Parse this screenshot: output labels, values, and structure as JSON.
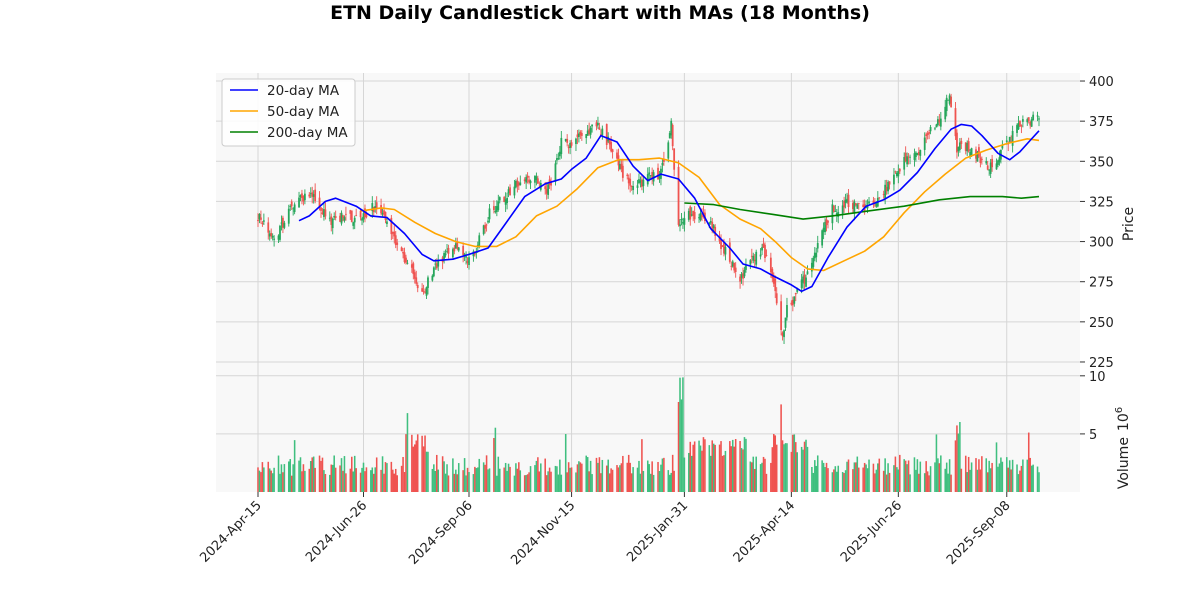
{
  "chart_data": {
    "type": "candlestick",
    "title": "ETN Daily Candlestick Chart with MAs (18 Months)",
    "ylabel_price": "Price",
    "ylabel_volume": "Volume",
    "volume_unit_exponent": "6",
    "price_ylim": [
      220,
      405
    ],
    "price_ticks": [
      225,
      250,
      275,
      300,
      325,
      350,
      375,
      400
    ],
    "volume_ylim": [
      0,
      10.5
    ],
    "volume_ticks": [
      5,
      10
    ],
    "date_range": [
      "2024-04-15",
      "2025-09-30"
    ],
    "x_ticks": [
      {
        "date": "2024-04-15",
        "label": "2024-Apr-15"
      },
      {
        "date": "2024-06-26",
        "label": "2024-Jun-26"
      },
      {
        "date": "2024-09-06",
        "label": "2024-Sep-06"
      },
      {
        "date": "2024-11-15",
        "label": "2024-Nov-15"
      },
      {
        "date": "2025-01-31",
        "label": "2025-Jan-31"
      },
      {
        "date": "2025-04-14",
        "label": "2025-Apr-14"
      },
      {
        "date": "2025-06-26",
        "label": "2025-Jun-26"
      },
      {
        "date": "2025-09-08",
        "label": "2025-Sep-08"
      }
    ],
    "colors": {
      "up": "#26a65b",
      "down": "#ef5350",
      "vol_up": "#3fbf7f",
      "vol_down": "#ef5350",
      "ma20": "#0000ff",
      "ma50": "#ffa500",
      "ma200": "#008000",
      "panel_bg": "#f8f8f8",
      "grid": "#d6d6d6"
    },
    "legend": [
      {
        "key": "ma20",
        "label": "20-day MA"
      },
      {
        "key": "ma50",
        "label": "50-day MA"
      },
      {
        "key": "ma200",
        "label": "200-day MA"
      }
    ],
    "close_anchors": [
      [
        "2024-04-15",
        316
      ],
      [
        "2024-04-22",
        308
      ],
      [
        "2024-04-26",
        300
      ],
      [
        "2024-05-03",
        314
      ],
      [
        "2024-05-10",
        322
      ],
      [
        "2024-05-20",
        331
      ],
      [
        "2024-05-28",
        320
      ],
      [
        "2024-06-05",
        312
      ],
      [
        "2024-06-14",
        317
      ],
      [
        "2024-06-24",
        312
      ],
      [
        "2024-07-02",
        321
      ],
      [
        "2024-07-10",
        316
      ],
      [
        "2024-07-18",
        301
      ],
      [
        "2024-07-26",
        286
      ],
      [
        "2024-08-05",
        268
      ],
      [
        "2024-08-12",
        280
      ],
      [
        "2024-08-20",
        292
      ],
      [
        "2024-08-28",
        296
      ],
      [
        "2024-09-06",
        288
      ],
      [
        "2024-09-12",
        298
      ],
      [
        "2024-09-20",
        318
      ],
      [
        "2024-09-30",
        328
      ],
      [
        "2024-10-10",
        338
      ],
      [
        "2024-10-21",
        338
      ],
      [
        "2024-10-31",
        332
      ],
      [
        "2024-11-08",
        362
      ],
      [
        "2024-11-15",
        360
      ],
      [
        "2024-11-25",
        370
      ],
      [
        "2024-12-03",
        372
      ],
      [
        "2024-12-10",
        362
      ],
      [
        "2024-12-18",
        345
      ],
      [
        "2024-12-27",
        333
      ],
      [
        "2025-01-06",
        340
      ],
      [
        "2025-01-15",
        343
      ],
      [
        "2025-01-22",
        372
      ],
      [
        "2025-01-27",
        310
      ],
      [
        "2025-02-03",
        316
      ],
      [
        "2025-02-12",
        318
      ],
      [
        "2025-02-21",
        306
      ],
      [
        "2025-03-03",
        288
      ],
      [
        "2025-03-10",
        276
      ],
      [
        "2025-03-18",
        290
      ],
      [
        "2025-03-26",
        294
      ],
      [
        "2025-04-03",
        270
      ],
      [
        "2025-04-08",
        240
      ],
      [
        "2025-04-11",
        258
      ],
      [
        "2025-04-17",
        266
      ],
      [
        "2025-04-25",
        280
      ],
      [
        "2025-05-05",
        305
      ],
      [
        "2025-05-12",
        320
      ],
      [
        "2025-05-22",
        324
      ],
      [
        "2025-06-02",
        322
      ],
      [
        "2025-06-12",
        326
      ],
      [
        "2025-06-20",
        336
      ],
      [
        "2025-07-01",
        352
      ],
      [
        "2025-07-10",
        357
      ],
      [
        "2025-07-18",
        368
      ],
      [
        "2025-07-25",
        376
      ],
      [
        "2025-07-31",
        394
      ],
      [
        "2025-08-05",
        358
      ],
      [
        "2025-08-12",
        360
      ],
      [
        "2025-08-20",
        352
      ],
      [
        "2025-08-28",
        346
      ],
      [
        "2025-09-05",
        358
      ],
      [
        "2025-09-12",
        366
      ],
      [
        "2025-09-19",
        374
      ],
      [
        "2025-09-26",
        376
      ],
      [
        "2025-09-30",
        377
      ]
    ],
    "ma20_points": [
      [
        "2024-05-13",
        313
      ],
      [
        "2024-05-20",
        316
      ],
      [
        "2024-05-31",
        325
      ],
      [
        "2024-06-07",
        327
      ],
      [
        "2024-06-21",
        322
      ],
      [
        "2024-07-01",
        316
      ],
      [
        "2024-07-12",
        315
      ],
      [
        "2024-07-24",
        305
      ],
      [
        "2024-08-05",
        292
      ],
      [
        "2024-08-13",
        288
      ],
      [
        "2024-08-26",
        289
      ],
      [
        "2024-09-06",
        292
      ],
      [
        "2024-09-19",
        296
      ],
      [
        "2024-09-30",
        310
      ],
      [
        "2024-10-14",
        328
      ],
      [
        "2024-10-28",
        336
      ],
      [
        "2024-11-08",
        339
      ],
      [
        "2024-11-15",
        345
      ],
      [
        "2024-11-25",
        352
      ],
      [
        "2024-12-05",
        366
      ],
      [
        "2024-12-16",
        362
      ],
      [
        "2024-12-27",
        347
      ],
      [
        "2025-01-06",
        338
      ],
      [
        "2025-01-15",
        342
      ],
      [
        "2025-01-27",
        339
      ],
      [
        "2025-02-07",
        327
      ],
      [
        "2025-02-18",
        308
      ],
      [
        "2025-03-03",
        296
      ],
      [
        "2025-03-12",
        286
      ],
      [
        "2025-03-24",
        283
      ],
      [
        "2025-04-03",
        278
      ],
      [
        "2025-04-14",
        273
      ],
      [
        "2025-04-21",
        269
      ],
      [
        "2025-04-28",
        272
      ],
      [
        "2025-05-09",
        290
      ],
      [
        "2025-05-22",
        309
      ],
      [
        "2025-06-04",
        322
      ],
      [
        "2025-06-16",
        326
      ],
      [
        "2025-06-27",
        332
      ],
      [
        "2025-07-09",
        343
      ],
      [
        "2025-07-21",
        358
      ],
      [
        "2025-08-01",
        370
      ],
      [
        "2025-08-08",
        373
      ],
      [
        "2025-08-15",
        372
      ],
      [
        "2025-08-22",
        366
      ],
      [
        "2025-09-02",
        355
      ],
      [
        "2025-09-10",
        351
      ],
      [
        "2025-09-17",
        356
      ],
      [
        "2025-09-24",
        363
      ],
      [
        "2025-09-30",
        369
      ]
    ],
    "ma50_points": [
      [
        "2024-06-24",
        319
      ],
      [
        "2024-07-08",
        321
      ],
      [
        "2024-07-17",
        320
      ],
      [
        "2024-07-31",
        312
      ],
      [
        "2024-08-14",
        305
      ],
      [
        "2024-08-28",
        300
      ],
      [
        "2024-09-10",
        297
      ],
      [
        "2024-09-25",
        297
      ],
      [
        "2024-10-08",
        303
      ],
      [
        "2024-10-22",
        316
      ],
      [
        "2024-11-05",
        322
      ],
      [
        "2024-11-19",
        333
      ],
      [
        "2024-12-03",
        346
      ],
      [
        "2024-12-17",
        351
      ],
      [
        "2024-12-31",
        351
      ],
      [
        "2025-01-14",
        352
      ],
      [
        "2025-01-27",
        349
      ],
      [
        "2025-02-10",
        340
      ],
      [
        "2025-02-24",
        323
      ],
      [
        "2025-03-10",
        314
      ],
      [
        "2025-03-24",
        308
      ],
      [
        "2025-04-03",
        300
      ],
      [
        "2025-04-14",
        290
      ],
      [
        "2025-04-25",
        283
      ],
      [
        "2025-05-06",
        282
      ],
      [
        "2025-05-20",
        288
      ],
      [
        "2025-06-03",
        294
      ],
      [
        "2025-06-16",
        303
      ],
      [
        "2025-06-30",
        318
      ],
      [
        "2025-07-14",
        331
      ],
      [
        "2025-07-28",
        342
      ],
      [
        "2025-08-11",
        352
      ],
      [
        "2025-08-25",
        357
      ],
      [
        "2025-09-08",
        361
      ],
      [
        "2025-09-22",
        364
      ],
      [
        "2025-09-30",
        363
      ]
    ],
    "ma200_points": [
      [
        "2025-01-31",
        324
      ],
      [
        "2025-02-20",
        323
      ],
      [
        "2025-03-10",
        320
      ],
      [
        "2025-04-01",
        317
      ],
      [
        "2025-04-22",
        314
      ],
      [
        "2025-05-12",
        316
      ],
      [
        "2025-06-05",
        319
      ],
      [
        "2025-06-30",
        322
      ],
      [
        "2025-07-24",
        326
      ],
      [
        "2025-08-14",
        328
      ],
      [
        "2025-09-05",
        328
      ],
      [
        "2025-09-18",
        327
      ],
      [
        "2025-09-30",
        328
      ]
    ]
  }
}
